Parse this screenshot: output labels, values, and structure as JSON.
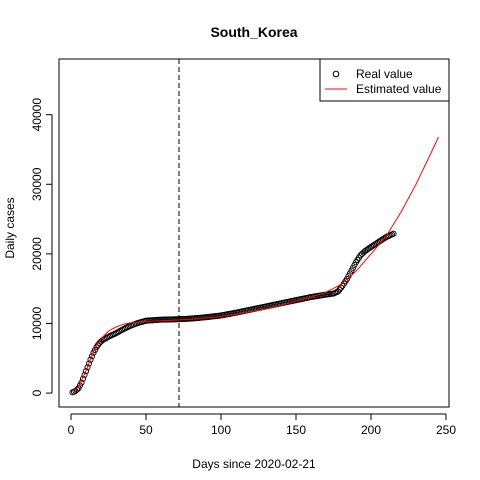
{
  "chart_data": {
    "type": "scatter",
    "title": "South_Korea",
    "xlabel": "Days since 2020-02-21",
    "ylabel": "Daily cases",
    "xlim": [
      -8,
      252
    ],
    "ylim": [
      -2000,
      48000
    ],
    "xticks": [
      0,
      50,
      100,
      150,
      200,
      250
    ],
    "yticks": [
      0,
      10000,
      20000,
      30000,
      40000
    ],
    "xtick_labels": [
      "0",
      "50",
      "100",
      "150",
      "200",
      "250"
    ],
    "ytick_labels": [
      "0",
      "10000",
      "20000",
      "30000",
      "40000"
    ],
    "grid": false,
    "legend_position": "top-right",
    "vline": {
      "x": 72,
      "style": "dashed"
    },
    "series": [
      {
        "name": "Real value",
        "kind": "points",
        "color": "#000000",
        "knots": [
          [
            1,
            100
          ],
          [
            3,
            300
          ],
          [
            5,
            700
          ],
          [
            7,
            1500
          ],
          [
            9,
            2600
          ],
          [
            11,
            3700
          ],
          [
            13,
            4800
          ],
          [
            15,
            5800
          ],
          [
            17,
            6600
          ],
          [
            19,
            7200
          ],
          [
            21,
            7600
          ],
          [
            25,
            8100
          ],
          [
            30,
            8600
          ],
          [
            35,
            9200
          ],
          [
            40,
            9700
          ],
          [
            45,
            10100
          ],
          [
            50,
            10400
          ],
          [
            60,
            10550
          ],
          [
            70,
            10600
          ],
          [
            80,
            10700
          ],
          [
            90,
            10900
          ],
          [
            100,
            11150
          ],
          [
            110,
            11550
          ],
          [
            120,
            12000
          ],
          [
            130,
            12450
          ],
          [
            140,
            12900
          ],
          [
            150,
            13350
          ],
          [
            160,
            13800
          ],
          [
            170,
            14150
          ],
          [
            175,
            14300
          ],
          [
            178,
            14600
          ],
          [
            181,
            15400
          ],
          [
            184,
            16400
          ],
          [
            187,
            17600
          ],
          [
            190,
            18800
          ],
          [
            193,
            19800
          ],
          [
            196,
            20400
          ],
          [
            200,
            21000
          ],
          [
            205,
            21700
          ],
          [
            210,
            22400
          ],
          [
            215,
            22900
          ]
        ]
      },
      {
        "name": "Estimated value",
        "kind": "line",
        "color": "#ff0000",
        "points": [
          [
            1,
            300
          ],
          [
            5,
            900
          ],
          [
            10,
            3200
          ],
          [
            15,
            6000
          ],
          [
            20,
            7800
          ],
          [
            25,
            8900
          ],
          [
            30,
            9500
          ],
          [
            35,
            9900
          ],
          [
            40,
            10100
          ],
          [
            50,
            10300
          ],
          [
            60,
            10400
          ],
          [
            70,
            10500
          ],
          [
            80,
            10600
          ],
          [
            90,
            10800
          ],
          [
            100,
            11000
          ],
          [
            110,
            11300
          ],
          [
            120,
            11700
          ],
          [
            130,
            12100
          ],
          [
            140,
            12600
          ],
          [
            150,
            13200
          ],
          [
            160,
            13800
          ],
          [
            170,
            14500
          ],
          [
            180,
            15600
          ],
          [
            190,
            17500
          ],
          [
            200,
            20000
          ],
          [
            210,
            22500
          ],
          [
            220,
            26000
          ],
          [
            230,
            30000
          ],
          [
            240,
            34500
          ],
          [
            245,
            36800
          ]
        ]
      }
    ]
  }
}
